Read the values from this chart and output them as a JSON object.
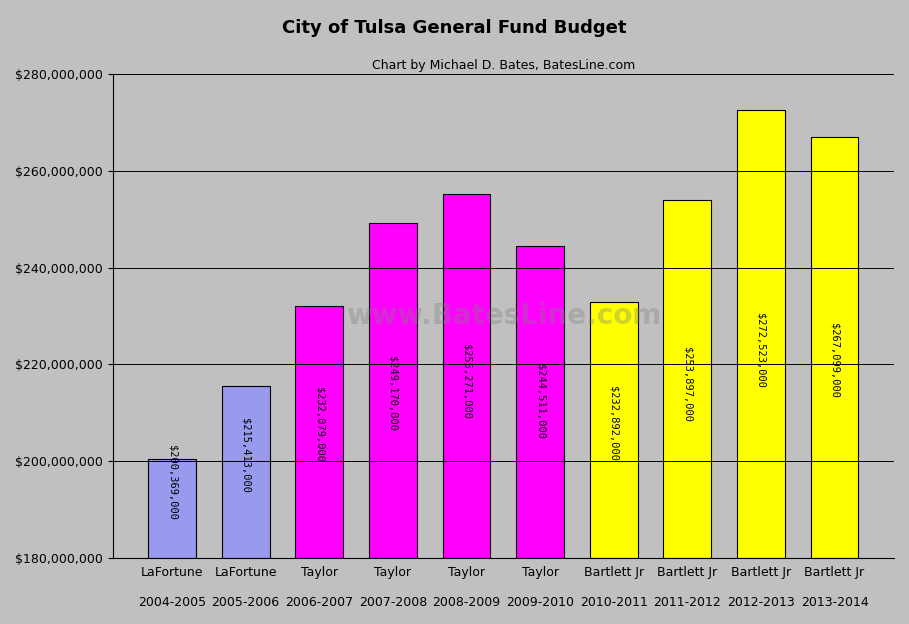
{
  "title": "City of Tulsa General Fund Budget",
  "subtitle": "Chart by Michael D. Bates, BatesLine.com",
  "categories_line1": [
    "LaFortune",
    "LaFortune",
    "Taylor",
    "Taylor",
    "Taylor",
    "Taylor",
    "Bartlett Jr",
    "Bartlett Jr",
    "Bartlett Jr",
    "Bartlett Jr"
  ],
  "categories_line2": [
    "2004-2005",
    "2005-2006",
    "2006-2007",
    "2007-2008",
    "2008-2009",
    "2009-2010",
    "2010-2011",
    "2011-2012",
    "2012-2013",
    "2013-2014"
  ],
  "values": [
    200369000,
    215413000,
    232079000,
    249170000,
    255271000,
    244511000,
    232892000,
    253897000,
    272523000,
    267099000
  ],
  "bar_colors": [
    "#9999ee",
    "#9999ee",
    "#ff00ff",
    "#ff00ff",
    "#ff00ff",
    "#ff00ff",
    "#ffff00",
    "#ffff00",
    "#ffff00",
    "#ffff00"
  ],
  "bar_edge_colors": [
    "#000000",
    "#000000",
    "#000000",
    "#000000",
    "#000000",
    "#000000",
    "#000000",
    "#000000",
    "#000000",
    "#000000"
  ],
  "value_labels": [
    "$200,369,000",
    "$215,413,000",
    "$232,079,000",
    "$249,170,000",
    "$255,271,000",
    "$244,511,000",
    "$232,892,000",
    "$253,897,000",
    "$272,523,000",
    "$267,099,000"
  ],
  "ylim_min": 180000000,
  "ylim_max": 280000000,
  "yticks": [
    180000000,
    200000000,
    220000000,
    240000000,
    260000000,
    280000000
  ],
  "background_color": "#c0c0c0",
  "title_fontsize": 13,
  "subtitle_fontsize": 9,
  "label_fontsize": 7.5,
  "tick_fontsize": 9
}
